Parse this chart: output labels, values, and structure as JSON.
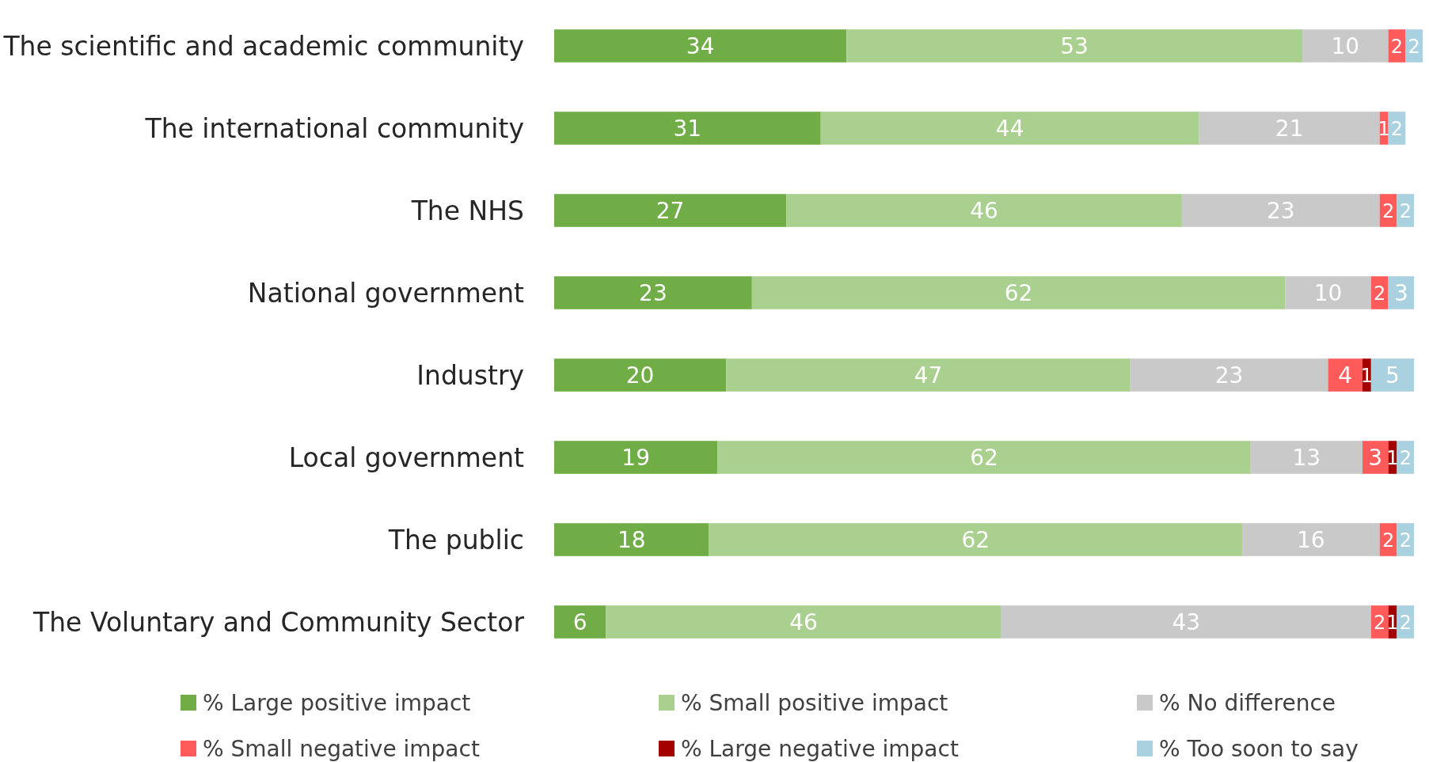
{
  "chart_data": {
    "type": "bar",
    "orientation": "horizontal",
    "stacked": true,
    "data_labels": true,
    "legend": "bottom",
    "grid": false,
    "categories": [
      "The scientific and academic community",
      "The international community",
      "The NHS",
      "National government",
      "Industry",
      "Local government",
      "The public",
      "The Voluntary and Community Sector"
    ],
    "series": [
      {
        "name": "% Large positive impact",
        "color": "#70ad47",
        "values": [
          34,
          31,
          27,
          23,
          20,
          19,
          18,
          6
        ]
      },
      {
        "name": "% Small positive impact",
        "color": "#a9d08e",
        "values": [
          53,
          44,
          46,
          62,
          47,
          62,
          62,
          46
        ]
      },
      {
        "name": "% No difference",
        "color": "#c9c9c9",
        "values": [
          10,
          21,
          23,
          10,
          23,
          13,
          16,
          43
        ]
      },
      {
        "name": "% Small negative impact",
        "color": "#ff5b5b",
        "values": [
          2,
          1,
          2,
          2,
          4,
          3,
          2,
          2
        ]
      },
      {
        "name": "% Large negative impact",
        "color": "#a50000",
        "values": [
          null,
          null,
          null,
          null,
          1,
          1,
          null,
          1
        ]
      },
      {
        "name": "% Too soon to say",
        "color": "#a9d1e0",
        "values": [
          2,
          2,
          2,
          3,
          5,
          2,
          2,
          2
        ]
      }
    ]
  }
}
